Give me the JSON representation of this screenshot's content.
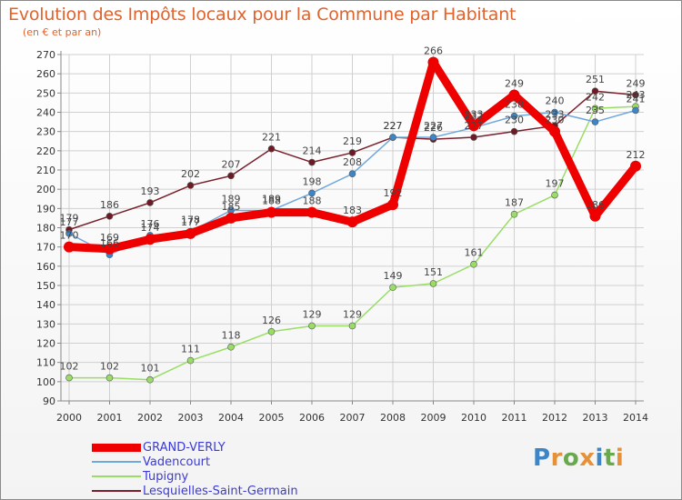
{
  "header": {
    "title": "Evolution des Impôts locaux pour la Commune par Habitant",
    "subtitle": "(en € et par an)"
  },
  "logo": {
    "text": "Proxiti"
  },
  "colors": {
    "title": "#e0632d",
    "grid": "#d0d0d0",
    "axis_text": "#333333",
    "value_text": "#444444",
    "legend_text": "#3b3bd6"
  },
  "chart_data": {
    "type": "line",
    "title": "Evolution des Impôts locaux pour la Commune par Habitant",
    "subtitle": "(en € et par an)",
    "xlabel": "",
    "ylabel": "",
    "ylim": [
      90,
      270
    ],
    "ytick_step": 10,
    "grid": true,
    "legend_position": "bottom-left",
    "categories": [
      "2000",
      "2001",
      "2002",
      "2003",
      "2004",
      "2005",
      "2006",
      "2007",
      "2008",
      "2009",
      "2010",
      "2011",
      "2012",
      "2013",
      "2014"
    ],
    "series": [
      {
        "name": "Tupigny",
        "color": "#99dd66",
        "stroke": 1.5,
        "marker": 3.5,
        "marker_fill": "#99dd66",
        "values": [
          102,
          102,
          101,
          111,
          118,
          126,
          129,
          129,
          149,
          151,
          161,
          187,
          197,
          242,
          243
        ],
        "labels": [
          "102",
          "102",
          "101",
          "111",
          "118",
          "126",
          "129",
          "129",
          "149",
          "151",
          "161",
          "187",
          "197",
          "242",
          "243"
        ]
      },
      {
        "name": "Lesquielles-Saint-Germain",
        "color": "#7a1f2b",
        "stroke": 1.5,
        "marker": 3.5,
        "marker_fill": "#6d1a24",
        "values": [
          179,
          186,
          193,
          202,
          207,
          221,
          214,
          219,
          227,
          226,
          227,
          230,
          233,
          251,
          249
        ],
        "labels": [
          "179",
          "186",
          "193",
          "202",
          "207",
          "221",
          "214",
          "219",
          "227",
          "226",
          "227",
          "230",
          "233",
          "251",
          "249"
        ]
      },
      {
        "name": "Vadencourt",
        "color": "#6fa8dc",
        "stroke": 1.5,
        "marker": 3.5,
        "marker_fill": "#3d85c6",
        "values": [
          177,
          166,
          176,
          178,
          189,
          189,
          198,
          208,
          227,
          227,
          232,
          238,
          240,
          235,
          241
        ],
        "labels": [
          "177",
          "166",
          "176",
          "178",
          "189",
          "189",
          "198",
          "208",
          "227",
          "227",
          "232",
          "238",
          "240",
          "235",
          "241"
        ]
      },
      {
        "name": "GRAND-VERLY",
        "color": "#ee0000",
        "stroke": 9,
        "marker": 6,
        "marker_fill": "#ee0000",
        "values": [
          170,
          169,
          174,
          177,
          185,
          188,
          188,
          183,
          192,
          266,
          233,
          249,
          230,
          186,
          212
        ],
        "labels": [
          "170",
          "169",
          "174",
          "177",
          "185",
          "188",
          "188",
          "183",
          "192",
          "266",
          "233",
          "249",
          "230",
          "186",
          "212"
        ]
      }
    ],
    "legend": [
      "GRAND-VERLY",
      "Vadencourt",
      "Tupigny",
      "Lesquielles-Saint-Germain"
    ]
  }
}
